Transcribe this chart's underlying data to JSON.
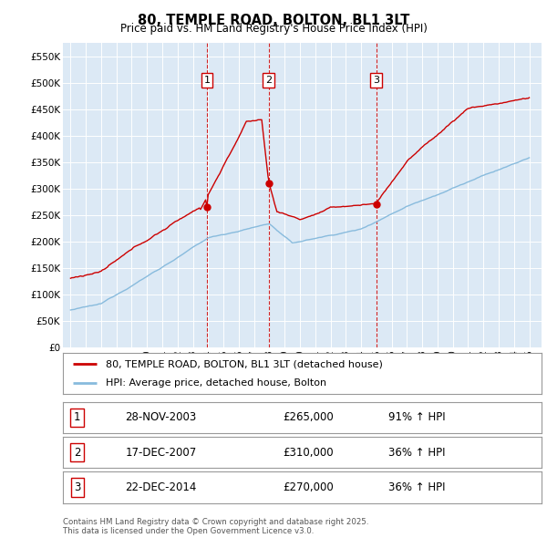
{
  "title": "80, TEMPLE ROAD, BOLTON, BL1 3LT",
  "subtitle": "Price paid vs. HM Land Registry's House Price Index (HPI)",
  "ylim": [
    0,
    575000
  ],
  "yticks": [
    0,
    50000,
    100000,
    150000,
    200000,
    250000,
    300000,
    350000,
    400000,
    450000,
    500000,
    550000
  ],
  "ytick_labels": [
    "£0",
    "£50K",
    "£100K",
    "£150K",
    "£200K",
    "£250K",
    "£300K",
    "£350K",
    "£400K",
    "£450K",
    "£500K",
    "£550K"
  ],
  "bg_color": "#dce9f5",
  "line1_color": "#cc0000",
  "line2_color": "#88bbdd",
  "vline_color": "#cc0000",
  "purchase_dates": [
    2003.91,
    2007.96,
    2014.98
  ],
  "purchase_prices": [
    265000,
    310000,
    270000
  ],
  "purchase_labels": [
    "1",
    "2",
    "3"
  ],
  "legend_label1": "80, TEMPLE ROAD, BOLTON, BL1 3LT (detached house)",
  "legend_label2": "HPI: Average price, detached house, Bolton",
  "table_rows": [
    {
      "num": "1",
      "date": "28-NOV-2003",
      "price": "£265,000",
      "hpi": "91% ↑ HPI"
    },
    {
      "num": "2",
      "date": "17-DEC-2007",
      "price": "£310,000",
      "hpi": "36% ↑ HPI"
    },
    {
      "num": "3",
      "date": "22-DEC-2014",
      "price": "£270,000",
      "hpi": "36% ↑ HPI"
    }
  ],
  "footnote": "Contains HM Land Registry data © Crown copyright and database right 2025.\nThis data is licensed under the Open Government Licence v3.0."
}
